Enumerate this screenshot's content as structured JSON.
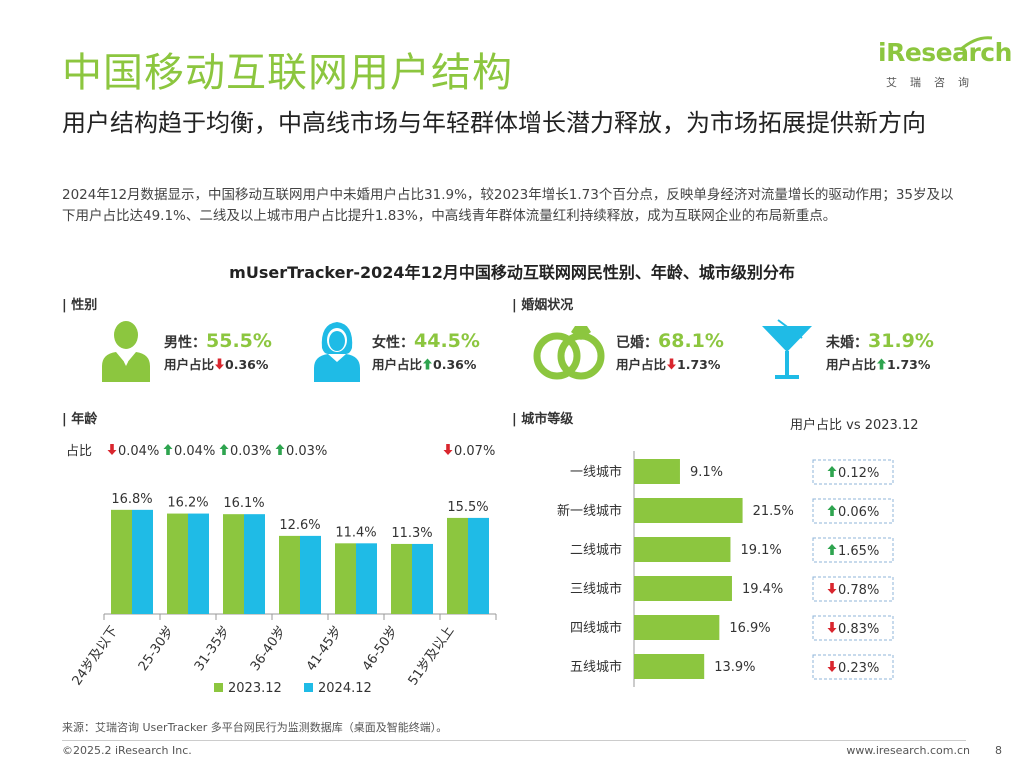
{
  "header": {
    "title": "中国移动互联网用户结构",
    "logo_word": "iResearch",
    "logo_cn": "艾瑞咨询"
  },
  "subtitle": "用户结构趋于均衡，中高线市场与年轻群体增长潜力释放，为市场拓展提供新方向",
  "description": "2024年12月数据显示，中国移动互联网用户中未婚用户占比31.9%，较2023年增长1.73个百分点，反映单身经济对流量增长的驱动作用；35岁及以下用户占比达49.1%、二线及以上城市用户占比提升1.83%，中高线青年群体流量红利持续释放，成为互联网企业的布局新重点。",
  "chart_title": "mUserTracker-2024年12月中国移动互联网网民性别、年龄、城市级别分布",
  "sections": {
    "gender": "| 性别",
    "marriage": "| 婚姻状况",
    "age": "| 年龄",
    "city": "| 城市等级"
  },
  "stats": [
    {
      "name": "男性：",
      "value": "55.5%",
      "sub": "用户占比",
      "dir": "down",
      "change": "0.36%",
      "icon": "male-user-icon"
    },
    {
      "name": "女性：",
      "value": "44.5%",
      "sub": "用户占比",
      "dir": "up",
      "change": "0.36%",
      "icon": "female-user-icon"
    },
    {
      "name": "已婚：",
      "value": "68.1%",
      "sub": "用户占比",
      "dir": "down",
      "change": "1.73%",
      "icon": "rings-icon"
    },
    {
      "name": "未婚：",
      "value": "31.9%",
      "sub": "用户占比",
      "dir": "up",
      "change": "1.73%",
      "icon": "cocktail-icon"
    }
  ],
  "colors": {
    "green": "#8cc63f",
    "blue": "#1fbbe6",
    "up": "#2ea44f",
    "down": "#d9262e"
  },
  "chart_data": [
    {
      "type": "bar",
      "categories": [
        "24岁及以下",
        "25-30岁",
        "31-35岁",
        "36-40岁",
        "41-45岁",
        "46-50岁",
        "51岁及以上"
      ],
      "series": [
        {
          "name": "2023.12",
          "values": [
            16.8,
            16.2,
            16.1,
            12.6,
            11.4,
            11.3,
            15.5
          ]
        },
        {
          "name": "2024.12",
          "values": [
            16.8,
            16.2,
            16.1,
            12.6,
            11.4,
            11.3,
            15.5
          ]
        }
      ],
      "value_labels": [
        "16.8%",
        "16.2%",
        "16.1%",
        "12.6%",
        "11.4%",
        "11.3%",
        "15.5%"
      ],
      "change_label": "占比",
      "changes": [
        {
          "dir": "down",
          "text": "0.04%"
        },
        {
          "dir": "up",
          "text": "0.04%"
        },
        {
          "dir": "up",
          "text": "0.03%"
        },
        {
          "dir": "up",
          "text": "0.03%"
        },
        null,
        null,
        {
          "dir": "down",
          "text": "0.07%"
        }
      ],
      "ylim": [
        0,
        20
      ],
      "legend": "bottom"
    },
    {
      "type": "bar",
      "orientation": "horizontal",
      "categories": [
        "一线城市",
        "新一线城市",
        "二线城市",
        "三线城市",
        "四线城市",
        "五线城市"
      ],
      "values": [
        9.1,
        21.5,
        19.1,
        19.4,
        16.9,
        13.9
      ],
      "value_labels": [
        "9.1%",
        "21.5%",
        "19.1%",
        "19.4%",
        "16.9%",
        "13.9%"
      ],
      "comparison_header": "用户占比 vs 2023.12",
      "changes": [
        {
          "dir": "up",
          "text": "0.12%"
        },
        {
          "dir": "up",
          "text": "0.06%"
        },
        {
          "dir": "up",
          "text": "1.65%"
        },
        {
          "dir": "down",
          "text": "0.78%"
        },
        {
          "dir": "down",
          "text": "0.83%"
        },
        {
          "dir": "down",
          "text": "0.23%"
        }
      ],
      "xlim": [
        0,
        25
      ]
    }
  ],
  "footer": {
    "source": "来源：艾瑞咨询 UserTracker 多平台网民行为监测数据库（桌面及智能终端）。",
    "copyright": "©2025.2 iResearch Inc.",
    "website": "www.iresearch.com.cn",
    "page": "8"
  }
}
